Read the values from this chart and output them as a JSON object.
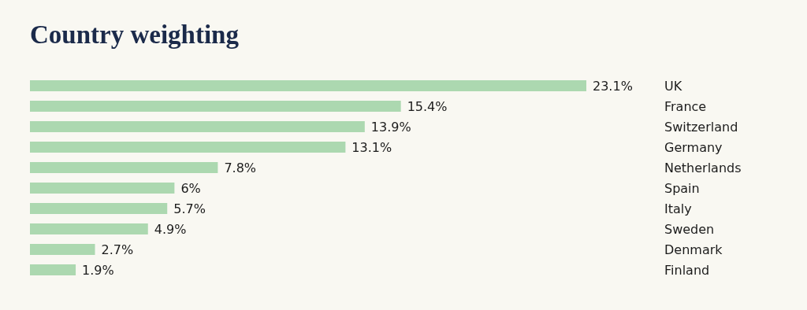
{
  "chart_data": {
    "type": "bar",
    "orientation": "horizontal",
    "title": "Country weighting",
    "categories": [
      "UK",
      "France",
      "Switzerland",
      "Germany",
      "Netherlands",
      "Spain",
      "Italy",
      "Sweden",
      "Denmark",
      "Finland"
    ],
    "values": [
      23.1,
      15.4,
      13.9,
      13.1,
      7.8,
      6,
      5.7,
      4.9,
      2.7,
      1.9
    ],
    "value_labels": [
      "23.1%",
      "15.4%",
      "13.9%",
      "13.1%",
      "7.8%",
      "6%",
      "5.7%",
      "4.9%",
      "2.7%",
      "1.9%"
    ],
    "color": "#acd8b0"
  }
}
